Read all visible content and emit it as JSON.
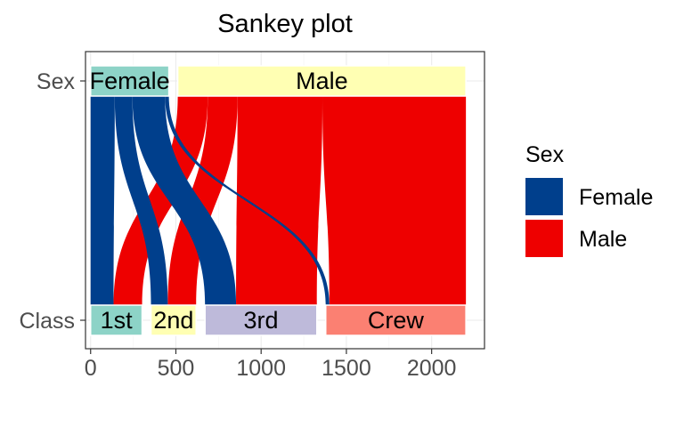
{
  "chart_data": {
    "type": "sankey",
    "title": "Sankey plot",
    "xlabel": "",
    "ylabel": "",
    "axes": [
      "Sex",
      "Class"
    ],
    "x_ticks": [
      0,
      500,
      1000,
      1500,
      2000
    ],
    "xlim": [
      -30,
      2310
    ],
    "grid": true,
    "legend": {
      "title": "Sex",
      "position": "right",
      "entries": [
        {
          "name": "Female",
          "color": "#003f8c"
        },
        {
          "name": "Male",
          "color": "#ee0000"
        }
      ]
    },
    "strata": {
      "Sex": [
        {
          "name": "Female",
          "value": 470,
          "color": "#8dd3c7"
        },
        {
          "name": "Male",
          "value": 1731,
          "color": "#ffffb3"
        }
      ],
      "Class": [
        {
          "name": "1st",
          "value": 325,
          "color": "#8dd3c7"
        },
        {
          "name": "2nd",
          "value": 285,
          "color": "#ffffb3"
        },
        {
          "name": "3rd",
          "value": 706,
          "color": "#bebada"
        },
        {
          "name": "Crew",
          "value": 885,
          "color": "#fb8072"
        }
      ]
    },
    "flows": [
      {
        "sex": "Female",
        "class": "1st",
        "value": 145
      },
      {
        "sex": "Female",
        "class": "2nd",
        "value": 106
      },
      {
        "sex": "Female",
        "class": "3rd",
        "value": 196
      },
      {
        "sex": "Female",
        "class": "Crew",
        "value": 23
      },
      {
        "sex": "Male",
        "class": "1st",
        "value": 180
      },
      {
        "sex": "Male",
        "class": "2nd",
        "value": 179
      },
      {
        "sex": "Male",
        "class": "3rd",
        "value": 510
      },
      {
        "sex": "Male",
        "class": "Crew",
        "value": 862
      }
    ]
  }
}
